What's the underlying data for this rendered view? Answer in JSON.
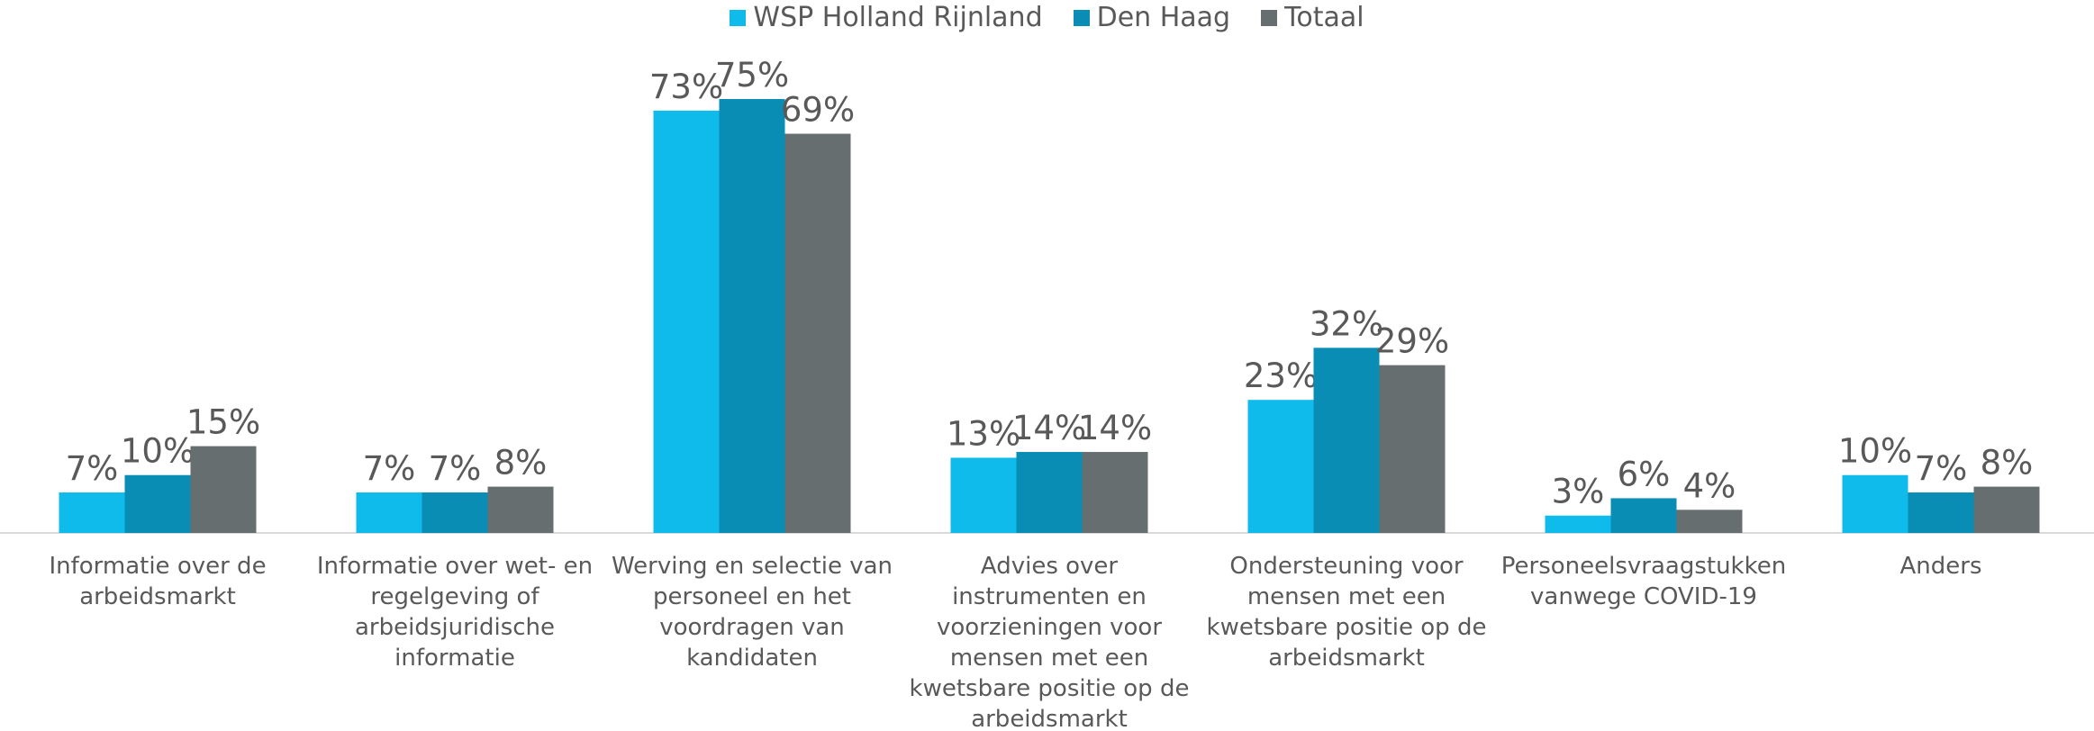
{
  "chart_data": {
    "type": "bar",
    "categories": [
      "Informatie over de arbeidsmarkt",
      "Informatie over wet- en regelgeving of arbeidsjuridische informatie",
      "Werving en selectie van personeel en het voordragen van kandidaten",
      "Advies over instrumenten en voorzieningen voor mensen met een kwetsbare positie op de arbeidsmarkt",
      "Ondersteuning voor mensen met een kwetsbare positie op de arbeidsmarkt",
      "Personeelsvraagstukken vanwege COVID-19",
      "Anders"
    ],
    "series": [
      {
        "name": "WSP Holland Rijnland",
        "color": "#0fbbeb",
        "values": [
          7,
          7,
          73,
          13,
          23,
          3,
          10
        ],
        "value_labels": [
          "7%",
          "7%",
          "73%",
          "13%",
          "23%",
          "3%",
          "10%"
        ]
      },
      {
        "name": "Den Haag",
        "color": "#0a8db5",
        "values": [
          10,
          7,
          75,
          14,
          32,
          6,
          7
        ],
        "value_labels": [
          "10%",
          "7%",
          "75%",
          "14%",
          "32%",
          "6%",
          "7%"
        ]
      },
      {
        "name": "Totaal",
        "color": "#676e70",
        "values": [
          15,
          8,
          69,
          14,
          29,
          4,
          8
        ],
        "value_labels": [
          "15%",
          "8%",
          "69%",
          "14%",
          "29%",
          "4%",
          "8%"
        ]
      }
    ]
  }
}
